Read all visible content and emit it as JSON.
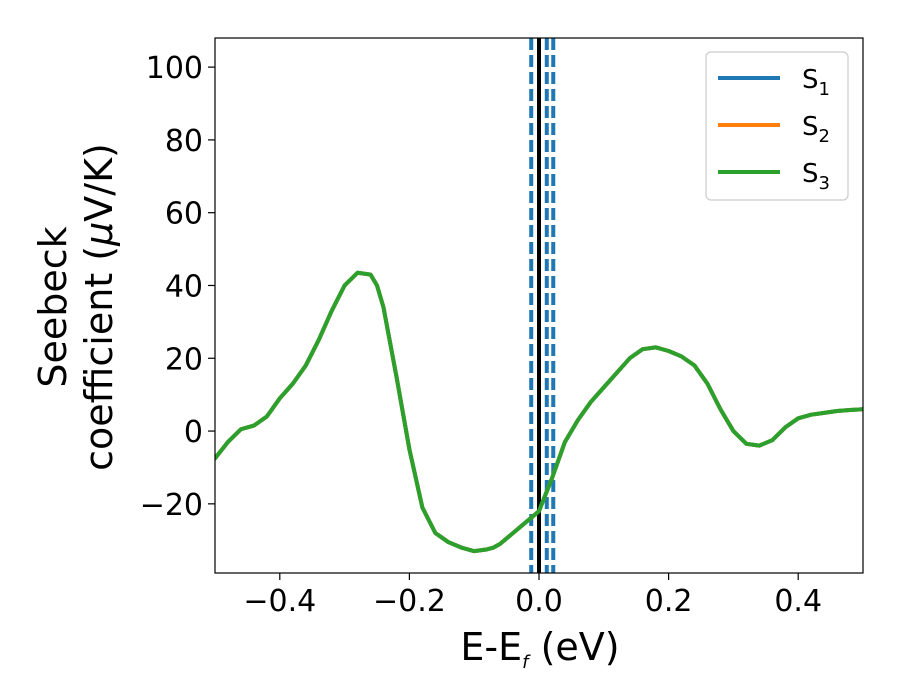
{
  "chart_data": {
    "type": "line",
    "xlabel": "E-E",
    "xlabel_sub": "f",
    "xlabel_unit": " (eV)",
    "ylabel_line1": "Seebeck",
    "ylabel_line2": "coefficient  (",
    "ylabel_mu": "μ",
    "ylabel_unit": "V/K)",
    "xlim": [
      -0.5,
      0.5
    ],
    "ylim": [
      -39,
      108
    ],
    "xticks": [
      -0.4,
      -0.2,
      0.0,
      0.2,
      0.4
    ],
    "xtick_labels": [
      "−0.4",
      "−0.2",
      "0.0",
      "0.2",
      "0.4"
    ],
    "yticks": [
      -20,
      0,
      20,
      40,
      60,
      80,
      100
    ],
    "ytick_labels": [
      "−20",
      "0",
      "20",
      "40",
      "60",
      "80",
      "100"
    ],
    "legend_position": "top-right",
    "grid": false,
    "vlines": [
      {
        "x": 0.0,
        "style": "solid",
        "color": "#000000"
      },
      {
        "x": -0.012,
        "style": "dashed",
        "color": "#1f77b4"
      },
      {
        "x": 0.012,
        "style": "dashed",
        "color": "#1f77b4"
      },
      {
        "x": 0.022,
        "style": "dashed",
        "color": "#1f77b4"
      }
    ],
    "x": [
      -0.5,
      -0.48,
      -0.46,
      -0.44,
      -0.42,
      -0.4,
      -0.38,
      -0.36,
      -0.34,
      -0.32,
      -0.3,
      -0.28,
      -0.26,
      -0.25,
      -0.24,
      -0.22,
      -0.2,
      -0.18,
      -0.16,
      -0.14,
      -0.12,
      -0.1,
      -0.08,
      -0.07,
      -0.06,
      -0.04,
      -0.02,
      0.0,
      0.02,
      0.04,
      0.06,
      0.08,
      0.1,
      0.12,
      0.14,
      0.16,
      0.18,
      0.2,
      0.22,
      0.24,
      0.26,
      0.28,
      0.3,
      0.32,
      0.34,
      0.36,
      0.38,
      0.4,
      0.42,
      0.44,
      0.46,
      0.48,
      0.5
    ],
    "series": [
      {
        "name": "S",
        "name_sub": "1",
        "color": "#1f77b4",
        "values": [
          -7.5,
          -3,
          0.5,
          1.5,
          4,
          9,
          13,
          18,
          25,
          33,
          40,
          43.5,
          43,
          40,
          34,
          15,
          -5,
          -21,
          -28,
          -30.5,
          -32,
          -33,
          -32.5,
          -32,
          -31,
          -28,
          -25,
          -22,
          -13,
          -3,
          3,
          8,
          12,
          16,
          20,
          22.5,
          23,
          22,
          20.5,
          18,
          13,
          6,
          0,
          -3.5,
          -4,
          -2.5,
          1,
          3.5,
          4.5,
          5,
          5.5,
          5.8,
          6
        ]
      },
      {
        "name": "S",
        "name_sub": "2",
        "color": "#ff7f0e",
        "values": [
          -7.5,
          -3,
          0.5,
          1.5,
          4,
          9,
          13,
          18,
          25,
          33,
          40,
          43.5,
          43,
          40,
          34,
          15,
          -5,
          -21,
          -28,
          -30.5,
          -32,
          -33,
          -32.5,
          -32,
          -31,
          -28,
          -25,
          -22,
          -13,
          -3,
          3,
          8,
          12,
          16,
          20,
          22.5,
          23,
          22,
          20.5,
          18,
          13,
          6,
          0,
          -3.5,
          -4,
          -2.5,
          1,
          3.5,
          4.5,
          5,
          5.5,
          5.8,
          6
        ]
      },
      {
        "name": "S",
        "name_sub": "3",
        "color": "#2ca02c",
        "values": [
          -7.5,
          -3,
          0.5,
          1.5,
          4,
          9,
          13,
          18,
          25,
          33,
          40,
          43.5,
          43,
          40,
          34,
          15,
          -5,
          -21,
          -28,
          -30.5,
          -32,
          -33,
          -32.5,
          -32,
          -31,
          -28,
          -25,
          -22,
          -13,
          -3,
          3,
          8,
          12,
          16,
          20,
          22.5,
          23,
          22,
          20.5,
          18,
          13,
          6,
          0,
          -3.5,
          -4,
          -2.5,
          1,
          3.5,
          4.5,
          5,
          5.5,
          5.8,
          6
        ]
      }
    ]
  }
}
